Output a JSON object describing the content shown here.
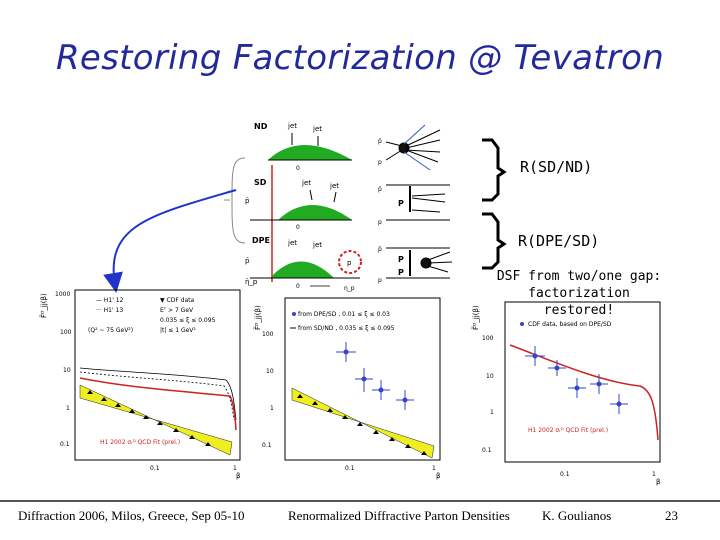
{
  "slide": {
    "title": "Restoring Factorization @ Tevatron",
    "callouts": {
      "r_sd_nd": "R(SD/ND)",
      "r_dpe_sd": "R(DPE/SD)"
    },
    "caption": {
      "line1": "DSF from two/one gap:",
      "line2": "factorization restored!"
    },
    "diagram_labels": {
      "nd": "ND",
      "sd": "SD",
      "dpe": "DPE",
      "jet": "jet",
      "zero": "0",
      "eta": "η",
      "pbar": "p̄",
      "p": "p",
      "pomeron": "P",
      "x_p": "1 – η_p"
    },
    "plots": {
      "left": {
        "legend": [
          "H1 '12",
          "H1 '13",
          "CDF data"
        ],
        "cuts": [
          "Eᵀ > 7 GeV",
          "0.035 ≤ ξ ≤ 0.095",
          "|t| ≤ 1 GeV²"
        ],
        "q2_note": "(Q² ~ 75 GeV²)",
        "fit_label": "H1 2002 σᵣᴰ QCD Fit (prel.)",
        "yaxis": "F̃ᴰ_jj(β)",
        "xaxis": "β",
        "yticks": [
          "1000",
          "100",
          "10",
          "1",
          "0.1"
        ],
        "xticks": [
          "0.1",
          "1"
        ]
      },
      "middle": {
        "legend": [
          "from DPE/SD ,  0.01 ≤ ξ ≤ 0.03",
          "from SD/ND ,  0.035 ≤ ξ ≤ 0.095"
        ],
        "fit_label": "",
        "yaxis": "F̃ᴰ_jj(β)",
        "xaxis": "β",
        "yticks": [
          "100",
          "10",
          "1",
          "0.1"
        ],
        "xticks": [
          "0.1",
          "1"
        ]
      },
      "right": {
        "legend": [
          "CDF data, based on DPE/SD"
        ],
        "fit_label": "H1 2002 σᵣᴰ QCD Fit (prel.)",
        "yaxis": "F̃ᴰ_jj(β)",
        "xaxis": "β",
        "yticks": [
          "100",
          "10",
          "1",
          "0.1"
        ],
        "xticks": [
          "0.1",
          "1"
        ]
      }
    },
    "footer": {
      "left": "Diffraction 2006, Milos, Greece, Sep 05-10",
      "center": "Renormalized Diffractive Parton Densities",
      "author": "K. Goulianos",
      "page": "23"
    }
  }
}
